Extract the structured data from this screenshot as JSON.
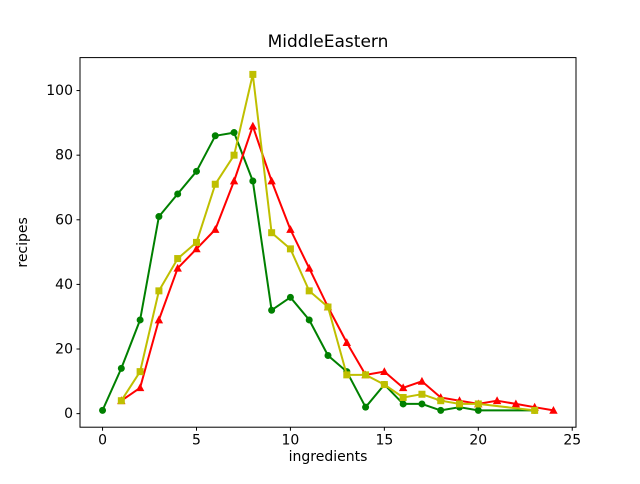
{
  "title": "MiddleEastern",
  "chart_data": {
    "type": "line",
    "title": "MiddleEastern",
    "xlabel": "ingredients",
    "ylabel": "recipes",
    "x_ticks": [
      0,
      5,
      10,
      15,
      20,
      25
    ],
    "y_ticks": [
      0,
      20,
      40,
      60,
      80,
      100
    ],
    "xlim": [
      -1.2,
      25.2
    ],
    "ylim": [
      -4.2,
      110.2
    ],
    "grid": false,
    "legend": null,
    "background": "#ffffff",
    "axis_color": "#000000",
    "series": [
      {
        "name": "green-series",
        "color": "#008000",
        "marker": "circle",
        "x": [
          0,
          1,
          2,
          3,
          4,
          5,
          6,
          7,
          8,
          9,
          10,
          11,
          12,
          13,
          14,
          15,
          16,
          17,
          18,
          19,
          20,
          23
        ],
        "y": [
          1,
          14,
          29,
          61,
          68,
          75,
          86,
          87,
          72,
          32,
          36,
          29,
          18,
          13,
          2,
          9,
          3,
          3,
          1,
          2,
          1,
          1
        ]
      },
      {
        "name": "red-series",
        "color": "#ff0000",
        "marker": "triangle-up",
        "x": [
          1,
          2,
          3,
          4,
          5,
          6,
          7,
          8,
          9,
          10,
          11,
          12,
          13,
          14,
          15,
          16,
          17,
          18,
          19,
          20,
          21,
          22,
          23,
          24
        ],
        "y": [
          4,
          8,
          29,
          45,
          51,
          57,
          72,
          89,
          72,
          57,
          45,
          33,
          22,
          12,
          13,
          8,
          10,
          5,
          4,
          3,
          4,
          3,
          2,
          1
        ]
      },
      {
        "name": "yellow-series",
        "color": "#bfbf00",
        "marker": "square",
        "x": [
          1,
          2,
          3,
          4,
          5,
          6,
          7,
          8,
          9,
          10,
          11,
          12,
          13,
          14,
          15,
          16,
          17,
          18,
          19,
          20,
          23
        ],
        "y": [
          4,
          13,
          38,
          48,
          53,
          71,
          80,
          105,
          56,
          51,
          38,
          33,
          12,
          12,
          9,
          5,
          6,
          4,
          3,
          3,
          1
        ]
      }
    ]
  }
}
